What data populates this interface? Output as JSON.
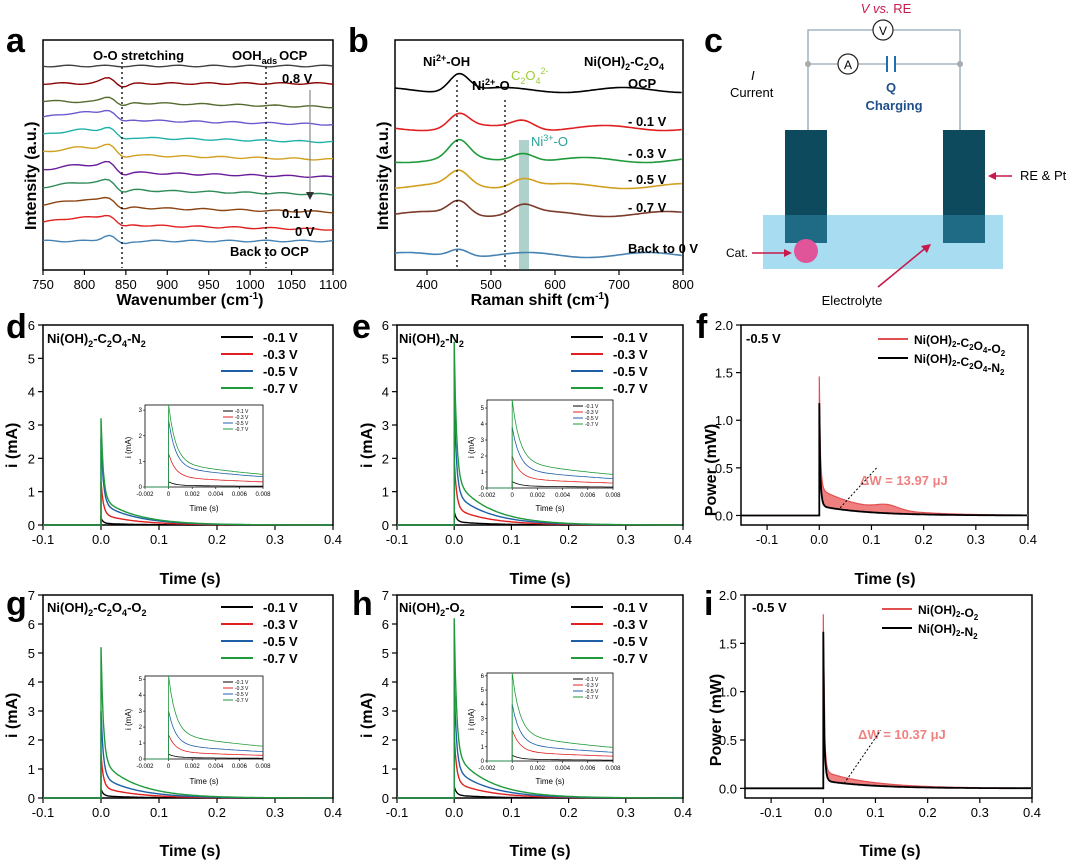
{
  "panels": {
    "a": {
      "letter": "a",
      "ylabel": "Intensity (a.u.)",
      "xlabel": "Wavenumber (cm",
      "xlabel_sup": "-1",
      "xticks": [
        "750",
        "800",
        "850",
        "900",
        "950",
        "1000",
        "1050",
        "1100"
      ],
      "ann_oo": "O-O stretching",
      "ann_ooh": "OOH",
      "ann_ooh_sub": "ads",
      "ann_ocp": "OCP",
      "lbl_08": "0.8 V",
      "lbl_01": "0.1 V",
      "lbl_0": "0 V",
      "lbl_back": "Back to OCP"
    },
    "b": {
      "letter": "b",
      "ylabel": "Intensity (a.u.)",
      "xlabel": "Raman shift (cm",
      "xlabel_sup": "-1",
      "xticks": [
        "400",
        "500",
        "600",
        "700",
        "800"
      ],
      "ni2oh": "Ni",
      "ni2oh_sup": "2+",
      "ni2oh_tail": "-OH",
      "ni2o": "Ni",
      "ni2o_sup": "2+",
      "ni2o_tail": "-O",
      "c2o4": "C",
      "c2o4_sub1": "2",
      "c2o4_mid": "O",
      "c2o4_sub2": "4",
      "c2o4_sup": "2-",
      "ni3o": "Ni",
      "ni3o_sup": "3+",
      "ni3o_tail": "-O",
      "title": "Ni(OH)",
      "title_sub1": "2",
      "title_mid": "-C",
      "title_sub2": "2",
      "title_mid2": "O",
      "title_sub3": "4",
      "labels": [
        "OCP",
        "- 0.1 V",
        "- 0.3 V",
        "- 0.5 V",
        "- 0.7 V",
        "Back to 0 V"
      ]
    },
    "c": {
      "letter": "c",
      "v_label": "V vs.",
      "v_label2": " RE",
      "v_symbol": "V",
      "a_symbol": "A",
      "current_i": "I",
      "current": "Current",
      "q": "Q",
      "charging": "Charging",
      "re_pt": "RE & Pt",
      "cat": "Cat.",
      "electrolyte": "Electrolyte"
    },
    "d": {
      "letter": "d",
      "title": "Ni(OH)",
      "title_rest": "-C",
      "title_tail": "-N",
      "title_parts": [
        "2",
        "2",
        "O",
        "4",
        "2"
      ],
      "ylabel": "i (mA)",
      "xlabel": "Time (s)",
      "inset_ylabel": "i (mA)",
      "inset_xlabel": "Time (s)"
    },
    "e": {
      "letter": "e",
      "title": "Ni(OH)",
      "title_tail": "-N",
      "title_parts": [
        "2",
        "2"
      ],
      "ylabel": "i (mA)",
      "xlabel": "Time (s)",
      "inset_ylabel": "i (mA)",
      "inset_xlabel": "Time (s)"
    },
    "f": {
      "letter": "f",
      "potential": "-0.5 V",
      "ylabel": "Power (mW)",
      "xlabel": "Time (s)",
      "legend": [
        "Ni(OH)",
        "-C",
        "O",
        "-O",
        "Ni(OH)",
        "-C",
        "O",
        "-N"
      ],
      "legend_o2": "Ni(OH)2-C2O4-O2",
      "legend_n2": "Ni(OH)2-C2O4-N2",
      "delta_w": "ΔW = 13.97 μJ"
    },
    "g": {
      "letter": "g",
      "title": "Ni(OH)",
      "title_rest": "-C",
      "title_tail": "-O",
      "title_parts": [
        "2",
        "2",
        "O",
        "4",
        "2"
      ],
      "ylabel": "i (mA)",
      "xlabel": "Time (s)",
      "inset_ylabel": "i (mA)",
      "inset_xlabel": "Time (s)"
    },
    "h": {
      "letter": "h",
      "title": "Ni(OH)",
      "title_tail": "-O",
      "title_parts": [
        "2",
        "2"
      ],
      "ylabel": "i (mA)",
      "xlabel": "Time (s)",
      "inset_ylabel": "i (mA)",
      "inset_xlabel": "Time (s)"
    },
    "i": {
      "letter": "i",
      "potential": "-0.5 V",
      "ylabel": "Power (mW)",
      "xlabel": "Time (s)",
      "legend_o2": "Ni(OH)2-O2",
      "legend_n2": "Ni(OH)2-N2",
      "delta_w": "ΔW = 10.37 μJ"
    }
  },
  "series_colors": {
    "-0.1 V": "#000000",
    "-0.3 V": "#e02020",
    "-0.5 V": "#1f5fa8",
    "-0.7 V": "#1f9a3a",
    "o2_fill": "#f08080",
    "n2_line": "#000000",
    "accent_red": "#c8194b",
    "panel_b_ann_green": "#9acd32",
    "panel_b_ann_teal": "#2aa198",
    "panel_c_dark": "#0d4a5e",
    "panel_c_blue_text": "#1f4f8a",
    "electrolyte": "#a8dcf0"
  },
  "chart_data": [
    {
      "panel": "a",
      "type": "line",
      "title": "",
      "xlabel": "Wavenumber (cm-1)",
      "ylabel": "Intensity (a.u.)",
      "xlim": [
        750,
        1100
      ],
      "xticks": [
        750,
        800,
        850,
        900,
        950,
        1000,
        1050,
        1100
      ],
      "markers_x": [
        845,
        1015
      ],
      "series_colors": [
        "#404040",
        "#8b0000",
        "#556b2f",
        "#6a5acd",
        "#20b2aa",
        "#d2a020",
        "#6a1b9a",
        "#2e8b57",
        "#8b4513",
        "#e02020",
        "#4682b4"
      ],
      "series_names": [
        "0.8 V",
        "",
        "",
        "",
        "",
        "",
        "",
        "0.1 V",
        "",
        "0 V",
        "Back to OCP"
      ]
    },
    {
      "panel": "b",
      "type": "line",
      "title": "Ni(OH)2-C2O4",
      "xlabel": "Raman shift (cm-1)",
      "ylabel": "Intensity (a.u.)",
      "xlim": [
        350,
        800
      ],
      "xticks": [
        400,
        500,
        600,
        700,
        800
      ],
      "markers_x": [
        452,
        523
      ],
      "band_x": [
        542,
        556
      ],
      "series": [
        {
          "name": "OCP",
          "color": "#000000"
        },
        {
          "name": "- 0.1 V",
          "color": "#e02020"
        },
        {
          "name": "- 0.3 V",
          "color": "#1f9a3a"
        },
        {
          "name": "- 0.5 V",
          "color": "#d2a020"
        },
        {
          "name": "- 0.7 V",
          "color": "#7b3b2b"
        },
        {
          "name": "Back to 0 V",
          "color": "#4682b4"
        }
      ]
    },
    {
      "panel": "d",
      "type": "line",
      "title": "Ni(OH)2-C2O4-N2",
      "xlabel": "Time (s)",
      "ylabel": "i (mA)",
      "xlim": [
        -0.1,
        0.4
      ],
      "ylim": [
        0,
        6
      ],
      "xticks": [
        -0.1,
        0.0,
        0.1,
        0.2,
        0.3,
        0.4
      ],
      "yticks": [
        0,
        1,
        2,
        3,
        4,
        5,
        6
      ],
      "series": [
        {
          "name": "-0.1 V",
          "peak": 0.2
        },
        {
          "name": "-0.3 V",
          "peak": 1.3
        },
        {
          "name": "-0.5 V",
          "peak": 2.6
        },
        {
          "name": "-0.7 V",
          "peak": 3.2
        }
      ],
      "inset": {
        "xlim": [
          -0.002,
          0.008
        ],
        "ylim": [
          0,
          3.2
        ],
        "xticks": [
          -0.002,
          0,
          0.002,
          0.004,
          0.006,
          0.008
        ],
        "yticks": [
          0,
          1,
          2,
          3
        ]
      }
    },
    {
      "panel": "e",
      "type": "line",
      "title": "Ni(OH)2-N2",
      "xlabel": "Time (s)",
      "ylabel": "i (mA)",
      "xlim": [
        -0.1,
        0.4
      ],
      "ylim": [
        0,
        6
      ],
      "xticks": [
        -0.1,
        0.0,
        0.1,
        0.2,
        0.3,
        0.4
      ],
      "yticks": [
        0,
        1,
        2,
        3,
        4,
        5,
        6
      ],
      "series": [
        {
          "name": "-0.1 V",
          "peak": 0.4
        },
        {
          "name": "-0.3 V",
          "peak": 2.0
        },
        {
          "name": "-0.5 V",
          "peak": 3.8
        },
        {
          "name": "-0.7 V",
          "peak": 5.5
        }
      ],
      "inset": {
        "xlim": [
          -0.002,
          0.008
        ],
        "ylim": [
          0,
          5.5
        ],
        "xticks": [
          -0.002,
          0,
          0.002,
          0.004,
          0.006,
          0.008
        ],
        "yticks": [
          0,
          1,
          2,
          3,
          4,
          5
        ]
      }
    },
    {
      "panel": "f",
      "type": "area",
      "title": "-0.5 V",
      "xlabel": "Time (s)",
      "ylabel": "Power (mW)",
      "xlim": [
        -0.15,
        0.4
      ],
      "ylim": [
        -0.1,
        2.0
      ],
      "xticks": [
        -0.1,
        0.0,
        0.1,
        0.2,
        0.3,
        0.4
      ],
      "yticks": [
        0.0,
        0.5,
        1.0,
        1.5,
        2.0
      ],
      "series": [
        {
          "name": "Ni(OH)2-C2O4-O2",
          "peak": 1.46,
          "tail": 0.28
        },
        {
          "name": "Ni(OH)2-C2O4-N2",
          "peak": 1.18,
          "tail": 0.1
        }
      ],
      "annotation": "ΔW = 13.97 μJ"
    },
    {
      "panel": "g",
      "type": "line",
      "title": "Ni(OH)2-C2O4-O2",
      "xlabel": "Time (s)",
      "ylabel": "i (mA)",
      "xlim": [
        -0.1,
        0.4
      ],
      "ylim": [
        0,
        7
      ],
      "xticks": [
        -0.1,
        0.0,
        0.1,
        0.2,
        0.3,
        0.4
      ],
      "yticks": [
        0,
        1,
        2,
        3,
        4,
        5,
        6,
        7
      ],
      "series": [
        {
          "name": "-0.1 V",
          "peak": 0.3
        },
        {
          "name": "-0.3 V",
          "peak": 1.5
        },
        {
          "name": "-0.5 V",
          "peak": 3.0
        },
        {
          "name": "-0.7 V",
          "peak": 5.2
        }
      ],
      "inset": {
        "xlim": [
          -0.002,
          0.008
        ],
        "ylim": [
          0,
          5.2
        ],
        "xticks": [
          -0.002,
          0,
          0.002,
          0.004,
          0.006,
          0.008
        ],
        "yticks": [
          0,
          1,
          2,
          3,
          4,
          5
        ]
      }
    },
    {
      "panel": "h",
      "type": "line",
      "title": "Ni(OH)2-O2",
      "xlabel": "Time (s)",
      "ylabel": "i (mA)",
      "xlim": [
        -0.1,
        0.4
      ],
      "ylim": [
        0,
        7
      ],
      "xticks": [
        -0.1,
        0.0,
        0.1,
        0.2,
        0.3,
        0.4
      ],
      "yticks": [
        0,
        1,
        2,
        3,
        4,
        5,
        6,
        7
      ],
      "series": [
        {
          "name": "-0.1 V",
          "peak": 0.4
        },
        {
          "name": "-0.3 V",
          "peak": 2.2
        },
        {
          "name": "-0.5 V",
          "peak": 4.0
        },
        {
          "name": "-0.7 V",
          "peak": 6.2
        }
      ],
      "inset": {
        "xlim": [
          -0.002,
          0.008
        ],
        "ylim": [
          0,
          6.2
        ],
        "xticks": [
          -0.002,
          0,
          0.002,
          0.004,
          0.006,
          0.008
        ],
        "yticks": [
          0,
          1,
          2,
          3,
          4,
          5,
          6
        ]
      }
    },
    {
      "panel": "i",
      "type": "area",
      "title": "-0.5 V",
      "xlabel": "Time (s)",
      "ylabel": "Power (mW)",
      "xlim": [
        -0.15,
        0.4
      ],
      "ylim": [
        -0.1,
        2.0
      ],
      "xticks": [
        -0.1,
        0.0,
        0.1,
        0.2,
        0.3,
        0.4
      ],
      "yticks": [
        0.0,
        0.5,
        1.0,
        1.5,
        2.0
      ],
      "series": [
        {
          "name": "Ni(OH)2-O2",
          "peak": 1.8,
          "tail": 0.22
        },
        {
          "name": "Ni(OH)2-N2",
          "peak": 1.62,
          "tail": 0.1
        }
      ],
      "annotation": "ΔW = 10.37 μJ"
    }
  ]
}
